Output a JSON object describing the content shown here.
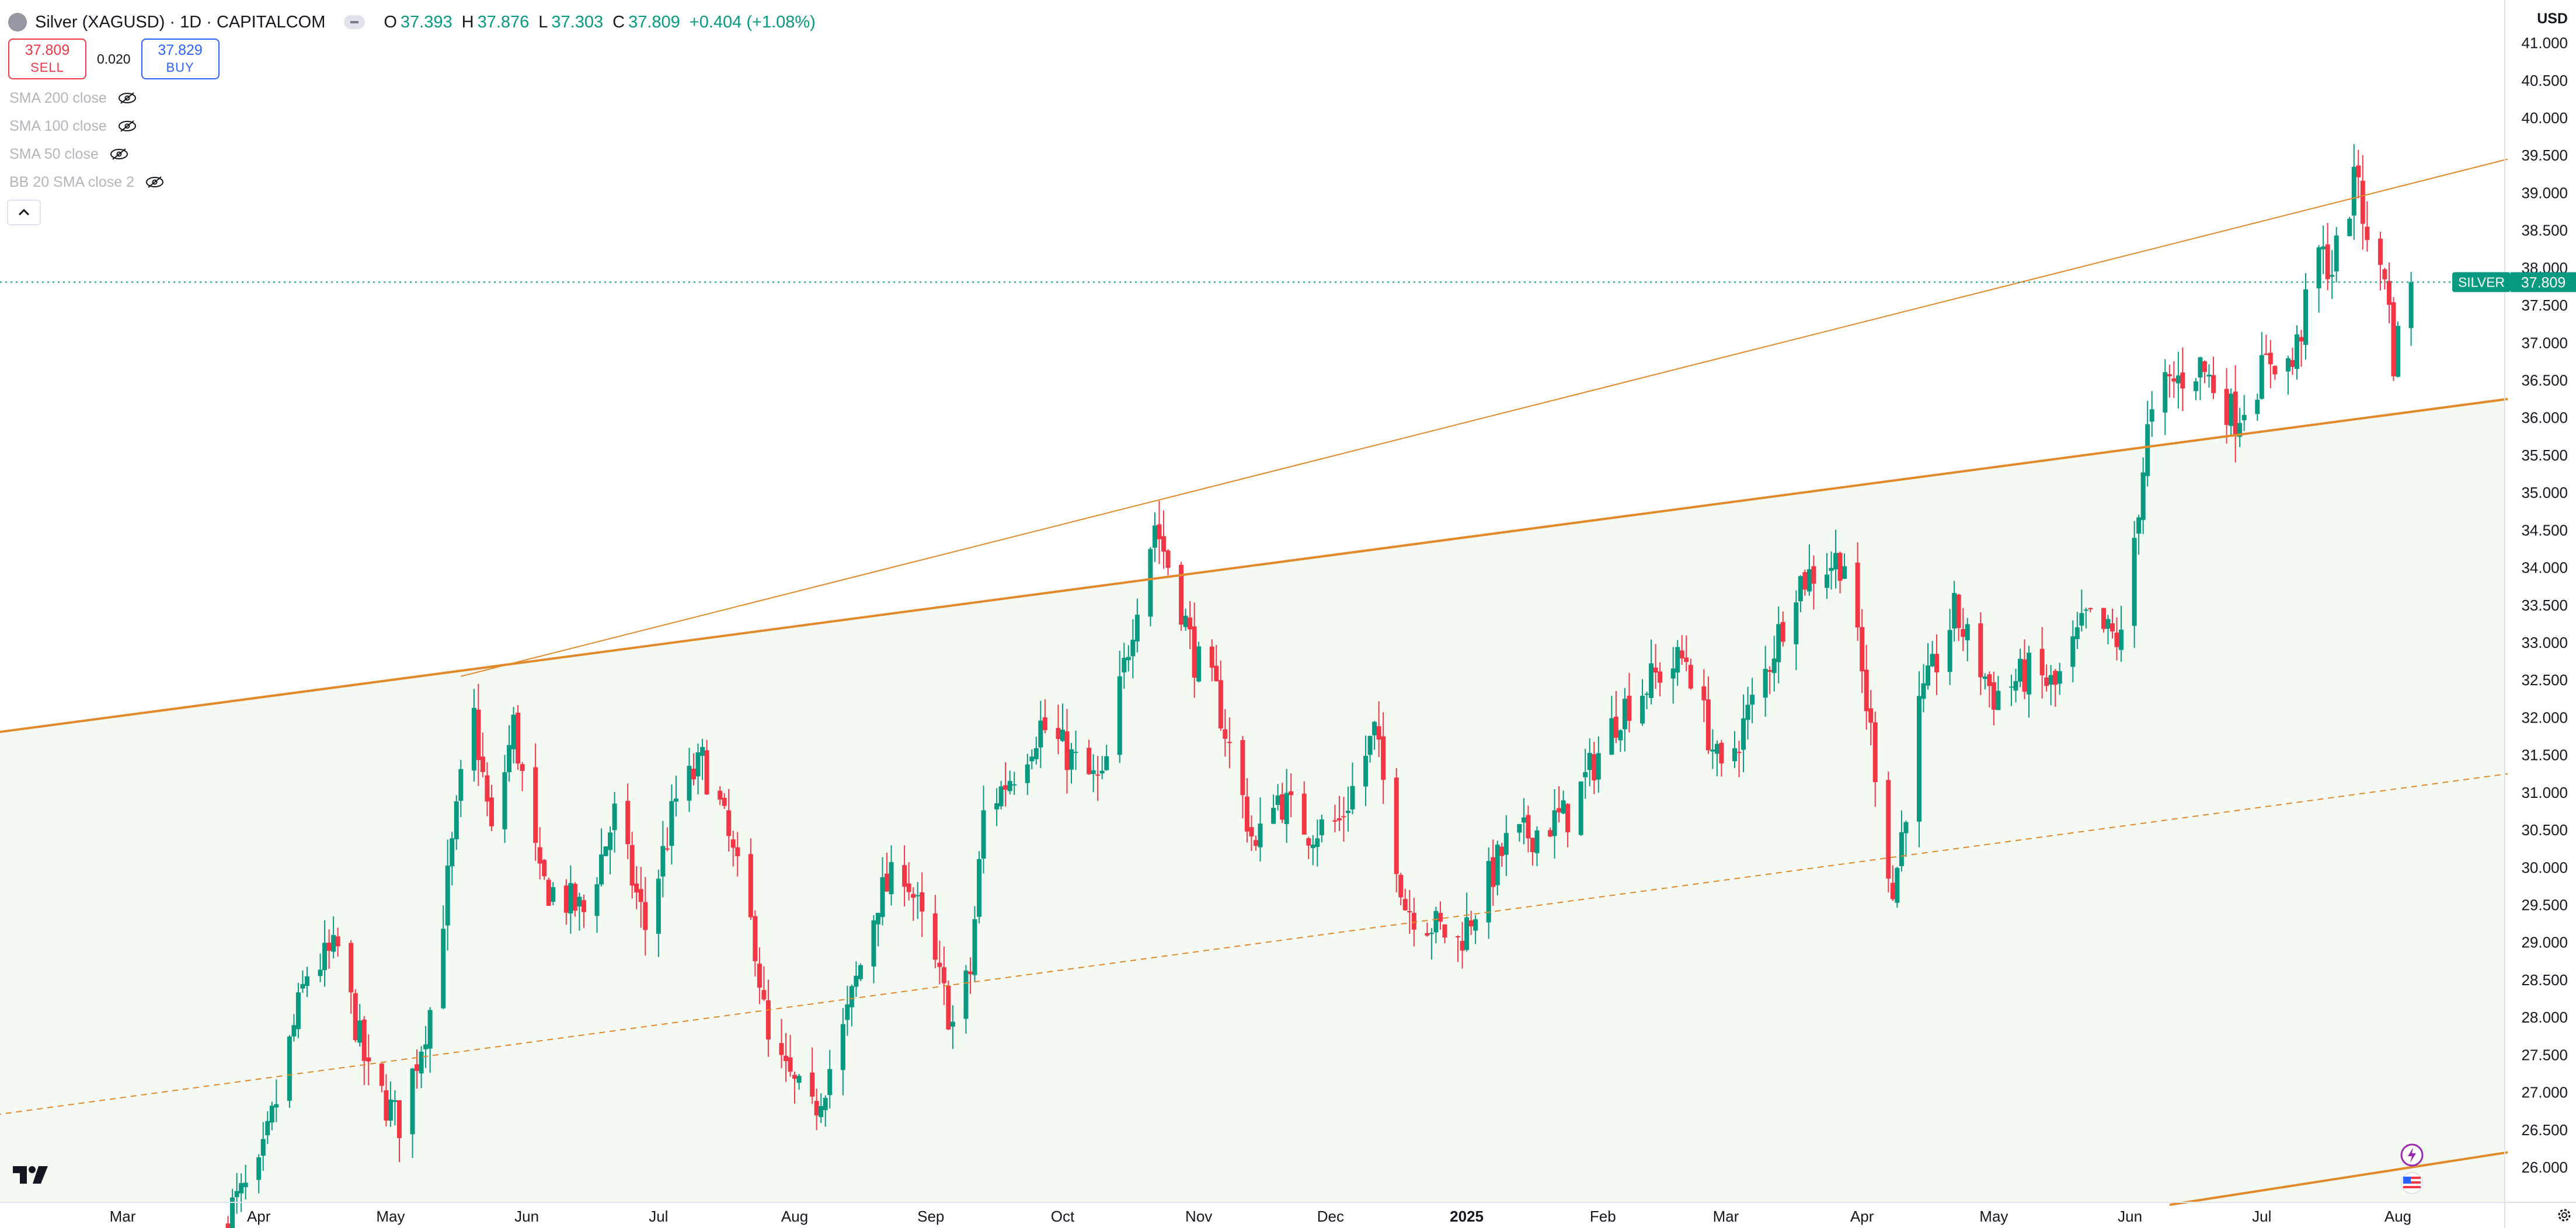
{
  "header": {
    "title": "Silver (XAGUSD) · 1D · CAPITALCOM",
    "ohlc": [
      {
        "k": "O",
        "v": "37.393"
      },
      {
        "k": "H",
        "v": "37.876"
      },
      {
        "k": "L",
        "v": "37.303"
      },
      {
        "k": "C",
        "v": "37.809"
      },
      {
        "k": "",
        "v": "+0.404 (+1.08%)"
      }
    ]
  },
  "trade": {
    "sell_price": "37.809",
    "sell_label": "SELL",
    "spread": "0.020",
    "buy_price": "37.829",
    "buy_label": "BUY"
  },
  "indicators": [
    {
      "label": "SMA 200 close"
    },
    {
      "label": "SMA 100 close"
    },
    {
      "label": "SMA 50 close"
    },
    {
      "label": "BB 20 SMA close 2"
    }
  ],
  "price_scale": {
    "currency": "USD",
    "last_price_label": "SILVER",
    "last_price": "37.809"
  },
  "colors": {
    "up": "#089981",
    "down": "#f23645",
    "trendline": "#e08a2c",
    "channel_fill": "#f4f9f1"
  },
  "chart_data": {
    "type": "candlestick",
    "title": "Silver (XAGUSD) · 1D · CAPITALCOM",
    "ylim": [
      25.5,
      41.0
    ],
    "y_ticks": [
      26.0,
      26.5,
      27.0,
      27.5,
      28.0,
      28.5,
      29.0,
      29.5,
      30.0,
      30.5,
      31.0,
      31.5,
      32.0,
      32.5,
      33.0,
      33.5,
      34.0,
      34.5,
      35.0,
      35.5,
      36.0,
      36.5,
      37.0,
      37.5,
      38.0,
      38.5,
      39.0,
      39.5,
      40.0,
      40.5,
      41.0
    ],
    "x_ticks": [
      {
        "label": "Mar",
        "date": "2024-03-01"
      },
      {
        "label": "Apr",
        "date": "2024-04-01"
      },
      {
        "label": "May",
        "date": "2024-05-01"
      },
      {
        "label": "Jun",
        "date": "2024-06-01"
      },
      {
        "label": "Jul",
        "date": "2024-07-01"
      },
      {
        "label": "Aug",
        "date": "2024-08-01"
      },
      {
        "label": "Sep",
        "date": "2024-09-01"
      },
      {
        "label": "Oct",
        "date": "2024-10-01"
      },
      {
        "label": "Nov",
        "date": "2024-11-01"
      },
      {
        "label": "Dec",
        "date": "2024-12-01"
      },
      {
        "label": "2025",
        "date": "2025-01-01",
        "bold": true
      },
      {
        "label": "Feb",
        "date": "2025-02-01"
      },
      {
        "label": "Mar",
        "date": "2025-03-01"
      },
      {
        "label": "Apr",
        "date": "2025-04-01"
      },
      {
        "label": "May",
        "date": "2025-05-01"
      },
      {
        "label": "Jun",
        "date": "2025-06-01"
      },
      {
        "label": "Jul",
        "date": "2025-07-01"
      },
      {
        "label": "Aug",
        "date": "2025-08-01"
      }
    ],
    "last_close": 37.809,
    "anchors": [
      [
        "2024-03-25",
        25.4
      ],
      [
        "2024-04-01",
        25.9
      ],
      [
        "2024-04-12",
        28.6
      ],
      [
        "2024-04-19",
        28.9
      ],
      [
        "2024-04-26",
        27.2
      ],
      [
        "2024-05-03",
        26.6
      ],
      [
        "2024-05-10",
        28.1
      ],
      [
        "2024-05-17",
        31.1
      ],
      [
        "2024-05-20",
        32.0
      ],
      [
        "2024-05-24",
        30.4
      ],
      [
        "2024-05-29",
        31.9
      ],
      [
        "2024-06-04",
        29.8
      ],
      [
        "2024-06-14",
        29.4
      ],
      [
        "2024-06-21",
        30.7
      ],
      [
        "2024-06-28",
        29.2
      ],
      [
        "2024-07-05",
        30.9
      ],
      [
        "2024-07-11",
        31.4
      ],
      [
        "2024-07-15",
        30.8
      ],
      [
        "2024-07-23",
        29.0
      ],
      [
        "2024-07-26",
        27.6
      ],
      [
        "2024-08-05",
        26.7
      ],
      [
        "2024-08-12",
        27.8
      ],
      [
        "2024-08-20",
        29.6
      ],
      [
        "2024-08-26",
        30.0
      ],
      [
        "2024-09-06",
        27.9
      ],
      [
        "2024-09-10",
        28.6
      ],
      [
        "2024-09-13",
        30.7
      ],
      [
        "2024-09-20",
        31.3
      ],
      [
        "2024-09-26",
        31.9
      ],
      [
        "2024-10-07",
        31.2
      ],
      [
        "2024-10-10",
        31.1
      ],
      [
        "2024-10-18",
        33.6
      ],
      [
        "2024-10-22",
        34.6
      ],
      [
        "2024-10-28",
        33.5
      ],
      [
        "2024-10-31",
        32.8
      ],
      [
        "2024-11-05",
        32.3
      ],
      [
        "2024-11-14",
        30.2
      ],
      [
        "2024-11-18",
        31.0
      ],
      [
        "2024-11-26",
        30.5
      ],
      [
        "2024-12-03",
        30.6
      ],
      [
        "2024-12-11",
        31.8
      ],
      [
        "2024-12-18",
        29.5
      ],
      [
        "2024-12-30",
        29.0
      ],
      [
        "2025-01-10",
        30.3
      ],
      [
        "2025-01-24",
        30.7
      ],
      [
        "2025-02-05",
        32.1
      ],
      [
        "2025-02-14",
        32.6
      ],
      [
        "2025-02-20",
        32.8
      ],
      [
        "2025-02-28",
        31.2
      ],
      [
        "2025-03-10",
        32.6
      ],
      [
        "2025-03-17",
        33.8
      ],
      [
        "2025-03-26",
        34.1
      ],
      [
        "2025-03-28",
        34.1
      ],
      [
        "2025-04-03",
        31.8
      ],
      [
        "2025-04-08",
        29.6
      ],
      [
        "2025-04-14",
        32.1
      ],
      [
        "2025-04-22",
        33.4
      ],
      [
        "2025-05-01",
        32.3
      ],
      [
        "2025-05-09",
        32.6
      ],
      [
        "2025-05-15",
        32.4
      ],
      [
        "2025-05-22",
        33.3
      ],
      [
        "2025-05-30",
        33.0
      ],
      [
        "2025-06-05",
        35.8
      ],
      [
        "2025-06-09",
        36.4
      ],
      [
        "2025-06-17",
        36.7
      ],
      [
        "2025-06-25",
        36.0
      ],
      [
        "2025-07-03",
        36.8
      ],
      [
        "2025-07-08",
        36.7
      ],
      [
        "2025-07-14",
        38.2
      ],
      [
        "2025-07-17",
        38.0
      ],
      [
        "2025-07-23",
        39.3
      ],
      [
        "2025-07-25",
        38.2
      ],
      [
        "2025-07-29",
        38.0
      ],
      [
        "2025-07-31",
        36.8
      ],
      [
        "2025-08-04",
        37.809
      ]
    ],
    "trendlines": [
      {
        "name": "support",
        "style": "solid",
        "width": 4,
        "points": [
          [
            "2024-02-01",
            31.8
          ],
          [
            "2025-08-26",
            36.25
          ]
        ]
      },
      {
        "name": "top",
        "style": "solid",
        "width": 2,
        "points": [
          [
            "2024-05-17",
            32.55
          ],
          [
            "2025-08-26",
            39.45
          ]
        ]
      },
      {
        "name": "mid",
        "style": "dashed",
        "width": 2,
        "points": [
          [
            "2024-02-01",
            26.7
          ],
          [
            "2025-08-26",
            31.25
          ]
        ]
      },
      {
        "name": "bottom",
        "style": "solid",
        "width": 4,
        "points": [
          [
            "2025-06-10",
            25.5
          ],
          [
            "2025-08-26",
            26.2
          ]
        ]
      }
    ]
  }
}
